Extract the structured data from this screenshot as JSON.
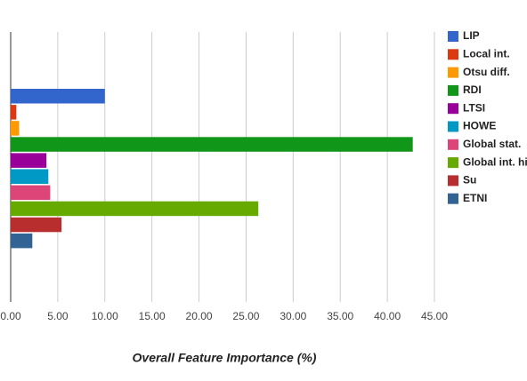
{
  "chart_data": {
    "type": "bar",
    "orientation": "horizontal",
    "x_label": "Overall Feature Importance (%)",
    "series": [
      {
        "name": "LIP",
        "color": "#3366cc",
        "values": [
          10.0
        ]
      },
      {
        "name": "Local int.",
        "color": "#dc3912",
        "values": [
          0.6
        ]
      },
      {
        "name": "Otsu diff.",
        "color": "#ff9900",
        "values": [
          0.9
        ]
      },
      {
        "name": "RDI",
        "color": "#109618",
        "values": [
          42.7
        ]
      },
      {
        "name": "LTSI",
        "color": "#990099",
        "values": [
          3.8
        ]
      },
      {
        "name": "HOWE",
        "color": "#0099c6",
        "values": [
          4.0
        ]
      },
      {
        "name": "Global stat.",
        "color": "#dd4477",
        "values": [
          4.2
        ]
      },
      {
        "name": "Global int. hi",
        "color": "#66aa00",
        "values": [
          26.3
        ]
      },
      {
        "name": "Su",
        "color": "#b82e2e",
        "values": [
          5.4
        ]
      },
      {
        "name": "ETNI",
        "color": "#316395",
        "values": [
          2.3
        ]
      }
    ],
    "xlim": [
      0,
      45
    ],
    "xticks": [
      {
        "value": 0,
        "label": "0.00"
      },
      {
        "value": 5,
        "label": "5.00"
      },
      {
        "value": 10,
        "label": "10.00"
      },
      {
        "value": 15,
        "label": "15.00"
      },
      {
        "value": 20,
        "label": "20.00"
      },
      {
        "value": 25,
        "label": "25.00"
      },
      {
        "value": 30,
        "label": "30.00"
      },
      {
        "value": 35,
        "label": "35.00"
      },
      {
        "value": 40,
        "label": "40.00"
      },
      {
        "value": 45,
        "label": "45.00"
      }
    ],
    "grid": true,
    "legend": "right"
  }
}
